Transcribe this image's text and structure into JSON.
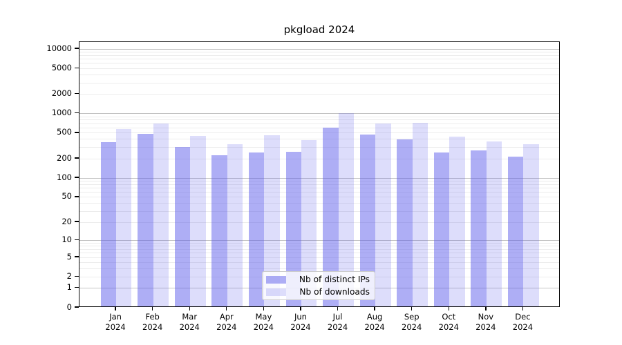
{
  "figure": {
    "title": "pkgload 2024"
  },
  "legend": {
    "items": [
      {
        "label": "Nb of distinct IPs",
        "color": "rgba(86,86,235,0.48)"
      },
      {
        "label": "Nb of downloads",
        "color": "rgba(86,86,235,0.20)"
      }
    ]
  },
  "chart_data": {
    "type": "bar",
    "title": "pkgload 2024",
    "categories": [
      "Jan 2024",
      "Feb 2024",
      "Mar 2024",
      "Apr 2024",
      "May 2024",
      "Jun 2024",
      "Jul 2024",
      "Aug 2024",
      "Sep 2024",
      "Oct 2024",
      "Nov 2024",
      "Dec 2024"
    ],
    "x_tick_line1": [
      "Jan",
      "Feb",
      "Mar",
      "Apr",
      "May",
      "Jun",
      "Jul",
      "Aug",
      "Sep",
      "Oct",
      "Nov",
      "Dec"
    ],
    "x_tick_line2": [
      "2024",
      "2024",
      "2024",
      "2024",
      "2024",
      "2024",
      "2024",
      "2024",
      "2024",
      "2024",
      "2024",
      "2024"
    ],
    "series": [
      {
        "name": "Nb of distinct IPs",
        "color": "rgba(86,86,235,0.48)",
        "values": [
          365,
          487,
          308,
          225,
          253,
          259,
          610,
          479,
          403,
          253,
          272,
          218
        ]
      },
      {
        "name": "Nb of downloads",
        "color": "rgba(86,86,235,0.20)",
        "values": [
          580,
          700,
          455,
          340,
          465,
          393,
          1020,
          710,
          725,
          445,
          375,
          340
        ]
      }
    ],
    "ylabel": "",
    "xlabel": "",
    "y_scale": "symlog-log1p",
    "y_ticks": [
      10000,
      5000,
      2000,
      1000,
      500,
      200,
      100,
      50,
      20,
      10,
      5,
      2,
      1,
      0
    ],
    "ylim": [
      0,
      13000
    ],
    "grid": {
      "which": "major+minor",
      "major_color": "#c3c3c3",
      "minor_color": "#ececec"
    },
    "legend_position": "lower center"
  }
}
